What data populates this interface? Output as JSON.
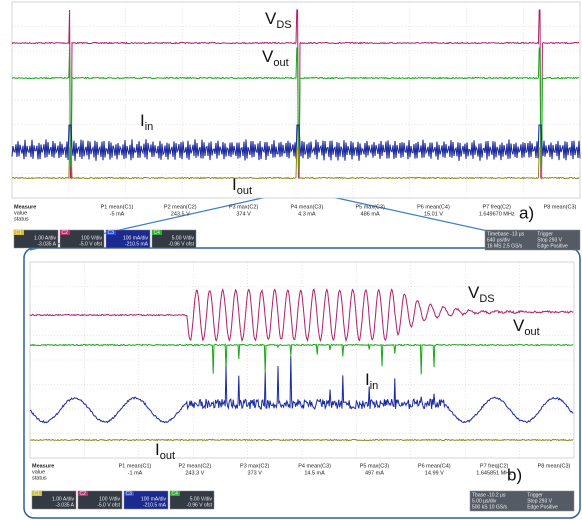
{
  "panels": [
    {
      "label": "a)",
      "signal_labels": [
        {
          "main": "V",
          "sub": "DS"
        },
        {
          "main": "V",
          "sub": "out"
        },
        {
          "main": "I",
          "sub": "in"
        },
        {
          "main": "I",
          "sub": "out"
        }
      ],
      "measure": {
        "header": [
          "Measure",
          "value",
          "status"
        ],
        "params": [
          {
            "name": "P1 mean(C1)",
            "value": "-5 mA"
          },
          {
            "name": "P2 mean(C2)",
            "value": "243.5 V"
          },
          {
            "name": "P3 max(C2)",
            "value": "374 V"
          },
          {
            "name": "P4 mean(C3)",
            "value": "4.3 mA"
          },
          {
            "name": "P5 max(C3)",
            "value": "486 mA"
          },
          {
            "name": "P6 mean(C4)",
            "value": "15.01 V"
          },
          {
            "name": "P7 freq(C2)",
            "value": "1.649670 MHz"
          },
          {
            "name": "P8 mean(C3)",
            "value": ""
          }
        ]
      },
      "channels": [
        {
          "id": "C1",
          "lines": [
            "1.00 A/div",
            "-3.035 A"
          ]
        },
        {
          "id": "C2",
          "lines": [
            "100 V/div",
            "-5.0 V ofst"
          ]
        },
        {
          "id": "C3",
          "lines": [
            "100 mA/div",
            "-210.5 mA"
          ]
        },
        {
          "id": "C4",
          "lines": [
            "5.00 V/div",
            "-0.96 V ofst"
          ]
        }
      ],
      "timebase": {
        "lines": [
          "Timebase -13 μs",
          "640 μs/div",
          "16 MS 2.5 GS/s"
        ],
        "trigger": [
          "Trigger",
          "Stop 293 V",
          "Edge Positive"
        ]
      }
    },
    {
      "label": "b)",
      "signal_labels": [
        {
          "main": "V",
          "sub": "DS"
        },
        {
          "main": "V",
          "sub": "out"
        },
        {
          "main": "I",
          "sub": "in"
        },
        {
          "main": "I",
          "sub": "out"
        }
      ],
      "measure": {
        "header": [
          "Measure",
          "value",
          "status"
        ],
        "params": [
          {
            "name": "P1 mean(C1)",
            "value": "-1 mA"
          },
          {
            "name": "P2 mean(C2)",
            "value": "243.3 V"
          },
          {
            "name": "P3 max(C2)",
            "value": "373 V"
          },
          {
            "name": "P4 mean(C3)",
            "value": "14.5 mA"
          },
          {
            "name": "P5 max(C3)",
            "value": "497 mA"
          },
          {
            "name": "P6 mean(C4)",
            "value": "14.99 V"
          },
          {
            "name": "P7 freq(C2)",
            "value": "1.645851 MHz"
          },
          {
            "name": "P8 mean(C3)",
            "value": ""
          }
        ]
      },
      "channels": [
        {
          "id": "C1",
          "lines": [
            "1.00 A/div",
            "-3.035 A"
          ]
        },
        {
          "id": "C2",
          "lines": [
            "100 V/div",
            "-5.0 V ofst"
          ]
        },
        {
          "id": "C3",
          "lines": [
            "100 mA/div",
            "-210.5 mA"
          ]
        },
        {
          "id": "C4",
          "lines": [
            "5.00 V/div",
            "-0.96 V ofst"
          ]
        }
      ],
      "timebase": {
        "lines": [
          "Tbase -10.2 μs",
          "5.00 μs/div",
          "500 kS 10 GS/s"
        ],
        "trigger": [
          "Trigger",
          "Stop 293 V",
          "Edge Positive"
        ]
      }
    }
  ]
}
